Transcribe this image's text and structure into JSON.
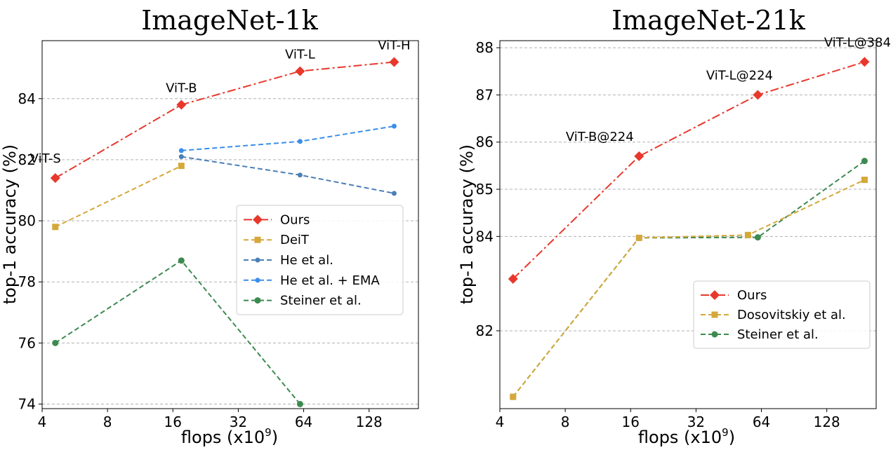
{
  "chart_data": [
    {
      "type": "line",
      "title": "ImageNet-1k",
      "xlabel": "flops (x10",
      "xlabel_sup": "9",
      "xlabel_end": ")",
      "ylabel": "top-1 accuracy (%)",
      "xscale": "log2",
      "xticks": [
        4,
        8,
        16,
        32,
        64,
        128
      ],
      "yticks": [
        74,
        76,
        78,
        80,
        82,
        84
      ],
      "xlim": [
        4,
        216
      ],
      "ylim": [
        73.85,
        85.9
      ],
      "grid": "y",
      "legend_position": "center-right",
      "series": [
        {
          "name": "Ours",
          "color": "#e8382c",
          "marker": "diamond",
          "dash": "dashdot",
          "x": [
            4.6,
            17.5,
            61.6,
            167
          ],
          "y": [
            81.4,
            83.8,
            84.9,
            85.2
          ]
        },
        {
          "name": "DeiT",
          "color": "#d4a83a",
          "marker": "square",
          "dash": "dashed",
          "x": [
            4.6,
            17.5
          ],
          "y": [
            79.8,
            81.8
          ]
        },
        {
          "name": "He et al.",
          "color": "#4a7fb5",
          "marker": "circle-small",
          "dash": "dashed",
          "x": [
            17.5,
            61.6,
            167
          ],
          "y": [
            82.1,
            81.5,
            80.9
          ]
        },
        {
          "name": "He et al. + EMA",
          "color": "#3b8eea",
          "marker": "circle-small",
          "dash": "dashed",
          "x": [
            17.5,
            61.6,
            167
          ],
          "y": [
            82.3,
            82.6,
            83.1
          ]
        },
        {
          "name": "Steiner et al.",
          "color": "#3d8a50",
          "marker": "circle",
          "dash": "dashed",
          "x": [
            4.6,
            17.5,
            61.6
          ],
          "y": [
            76.0,
            78.7,
            74.0
          ]
        }
      ],
      "annotations": [
        {
          "text": "ViT-S",
          "x": 4.6,
          "y": 81.4
        },
        {
          "text": "ViT-B",
          "x": 17.5,
          "y": 83.8
        },
        {
          "text": "ViT-L",
          "x": 61.6,
          "y": 84.9
        },
        {
          "text": "ViT-H",
          "x": 167,
          "y": 85.2
        }
      ]
    },
    {
      "type": "line",
      "title": "ImageNet-21k",
      "xlabel": "flops (x10",
      "xlabel_sup": "9",
      "xlabel_end": ")",
      "ylabel": "top-1 accuracy (%)",
      "xscale": "log2",
      "xticks": [
        4,
        8,
        16,
        32,
        64,
        128
      ],
      "yticks": [
        82,
        84,
        85,
        86,
        87,
        88
      ],
      "xlim": [
        4,
        216
      ],
      "ylim": [
        80.35,
        88.15
      ],
      "grid": "y",
      "legend_position": "lower-right",
      "series": [
        {
          "name": "Ours",
          "color": "#e8382c",
          "marker": "diamond",
          "dash": "dashdot",
          "x": [
            4.6,
            17.5,
            61.6,
            191
          ],
          "y": [
            83.1,
            85.7,
            87.0,
            87.7
          ]
        },
        {
          "name": "Dosovitskiy et al.",
          "color": "#d4a83a",
          "marker": "square",
          "dash": "dashed",
          "x": [
            4.6,
            17.5,
            55.5,
            191
          ],
          "y": [
            80.6,
            83.97,
            84.03,
            85.2
          ]
        },
        {
          "name": "Steiner et al.",
          "color": "#3d8a50",
          "marker": "circle",
          "dash": "dashed",
          "x": [
            4.6,
            17.5,
            61.6,
            191
          ],
          "y": [
            80.6,
            83.97,
            83.98,
            85.6
          ]
        }
      ],
      "annotations": [
        {
          "text": "ViT-B@224",
          "x": 17.5,
          "y": 85.7
        },
        {
          "text": "ViT-L@224",
          "x": 61.6,
          "y": 87.0
        },
        {
          "text": "ViT-L@384",
          "x": 191,
          "y": 87.7
        }
      ]
    }
  ]
}
